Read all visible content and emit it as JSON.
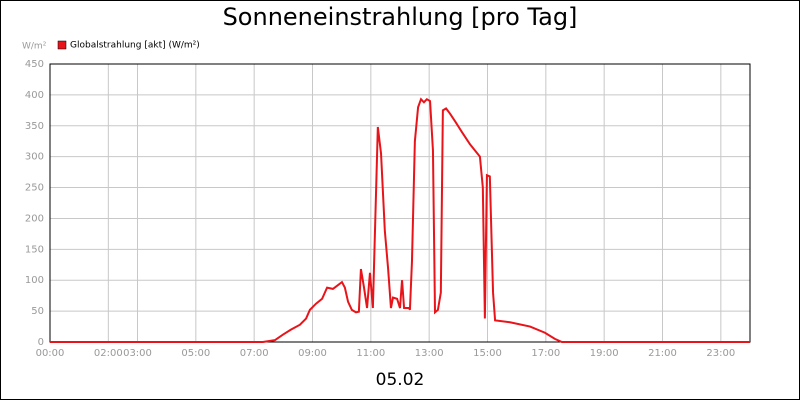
{
  "chart_data": {
    "type": "line",
    "title": "Sonneneinstrahlung [pro Tag]",
    "y_label": "W/m²",
    "x_label": "05.02",
    "xlim": [
      0,
      24
    ],
    "ylim": [
      0,
      450
    ],
    "yticks": [
      0,
      50,
      100,
      150,
      200,
      250,
      300,
      350,
      400,
      450
    ],
    "xticks": [
      {
        "value": 0,
        "label": "00:00"
      },
      {
        "value": 2,
        "label": "02:00"
      },
      {
        "value": 3,
        "label": "03:00"
      },
      {
        "value": 5,
        "label": "05:00"
      },
      {
        "value": 7,
        "label": "07:00"
      },
      {
        "value": 9,
        "label": "09:00"
      },
      {
        "value": 11,
        "label": "11:00"
      },
      {
        "value": 13,
        "label": "13:00"
      },
      {
        "value": 15,
        "label": "15:00"
      },
      {
        "value": 17,
        "label": "17:00"
      },
      {
        "value": 19,
        "label": "19:00"
      },
      {
        "value": 21,
        "label": "21:00"
      },
      {
        "value": 23,
        "label": "23:00"
      }
    ],
    "grid": true,
    "x": [
      0,
      7.3,
      7.71,
      7.99,
      8.26,
      8.57,
      8.78,
      8.91,
      9.12,
      9.33,
      9.5,
      9.7,
      9.87,
      10.01,
      10.11,
      10.22,
      10.35,
      10.49,
      10.59,
      10.66,
      10.76,
      10.87,
      10.97,
      11.07,
      11.24,
      11.35,
      11.48,
      11.59,
      11.69,
      11.76,
      11.9,
      12.0,
      12.07,
      12.14,
      12.31,
      12.34,
      12.41,
      12.51,
      12.62,
      12.72,
      12.82,
      12.92,
      13.03,
      13.13,
      13.2,
      13.3,
      13.4,
      13.47,
      13.58,
      13.71,
      13.92,
      14.12,
      14.4,
      14.74,
      14.84,
      14.91,
      14.98,
      15.08,
      15.19,
      15.26,
      15.77,
      16.46,
      16.97,
      17.31,
      17.55,
      24
    ],
    "series": [
      {
        "name": "Globalstrahlung [akt] (W/m²)",
        "color": "#e8141a",
        "values": [
          0,
          0,
          3,
          12,
          20,
          28,
          38,
          52,
          62,
          70,
          88,
          86,
          92,
          97,
          88,
          65,
          52,
          48,
          49,
          118,
          90,
          55,
          112,
          55,
          348,
          305,
          180,
          120,
          55,
          72,
          70,
          55,
          100,
          55,
          55,
          52,
          130,
          325,
          380,
          393,
          388,
          393,
          390,
          310,
          48,
          52,
          80,
          375,
          378,
          370,
          355,
          340,
          320,
          300,
          250,
          38,
          270,
          268,
          80,
          35,
          32,
          25,
          15,
          5,
          0,
          0
        ]
      }
    ]
  }
}
